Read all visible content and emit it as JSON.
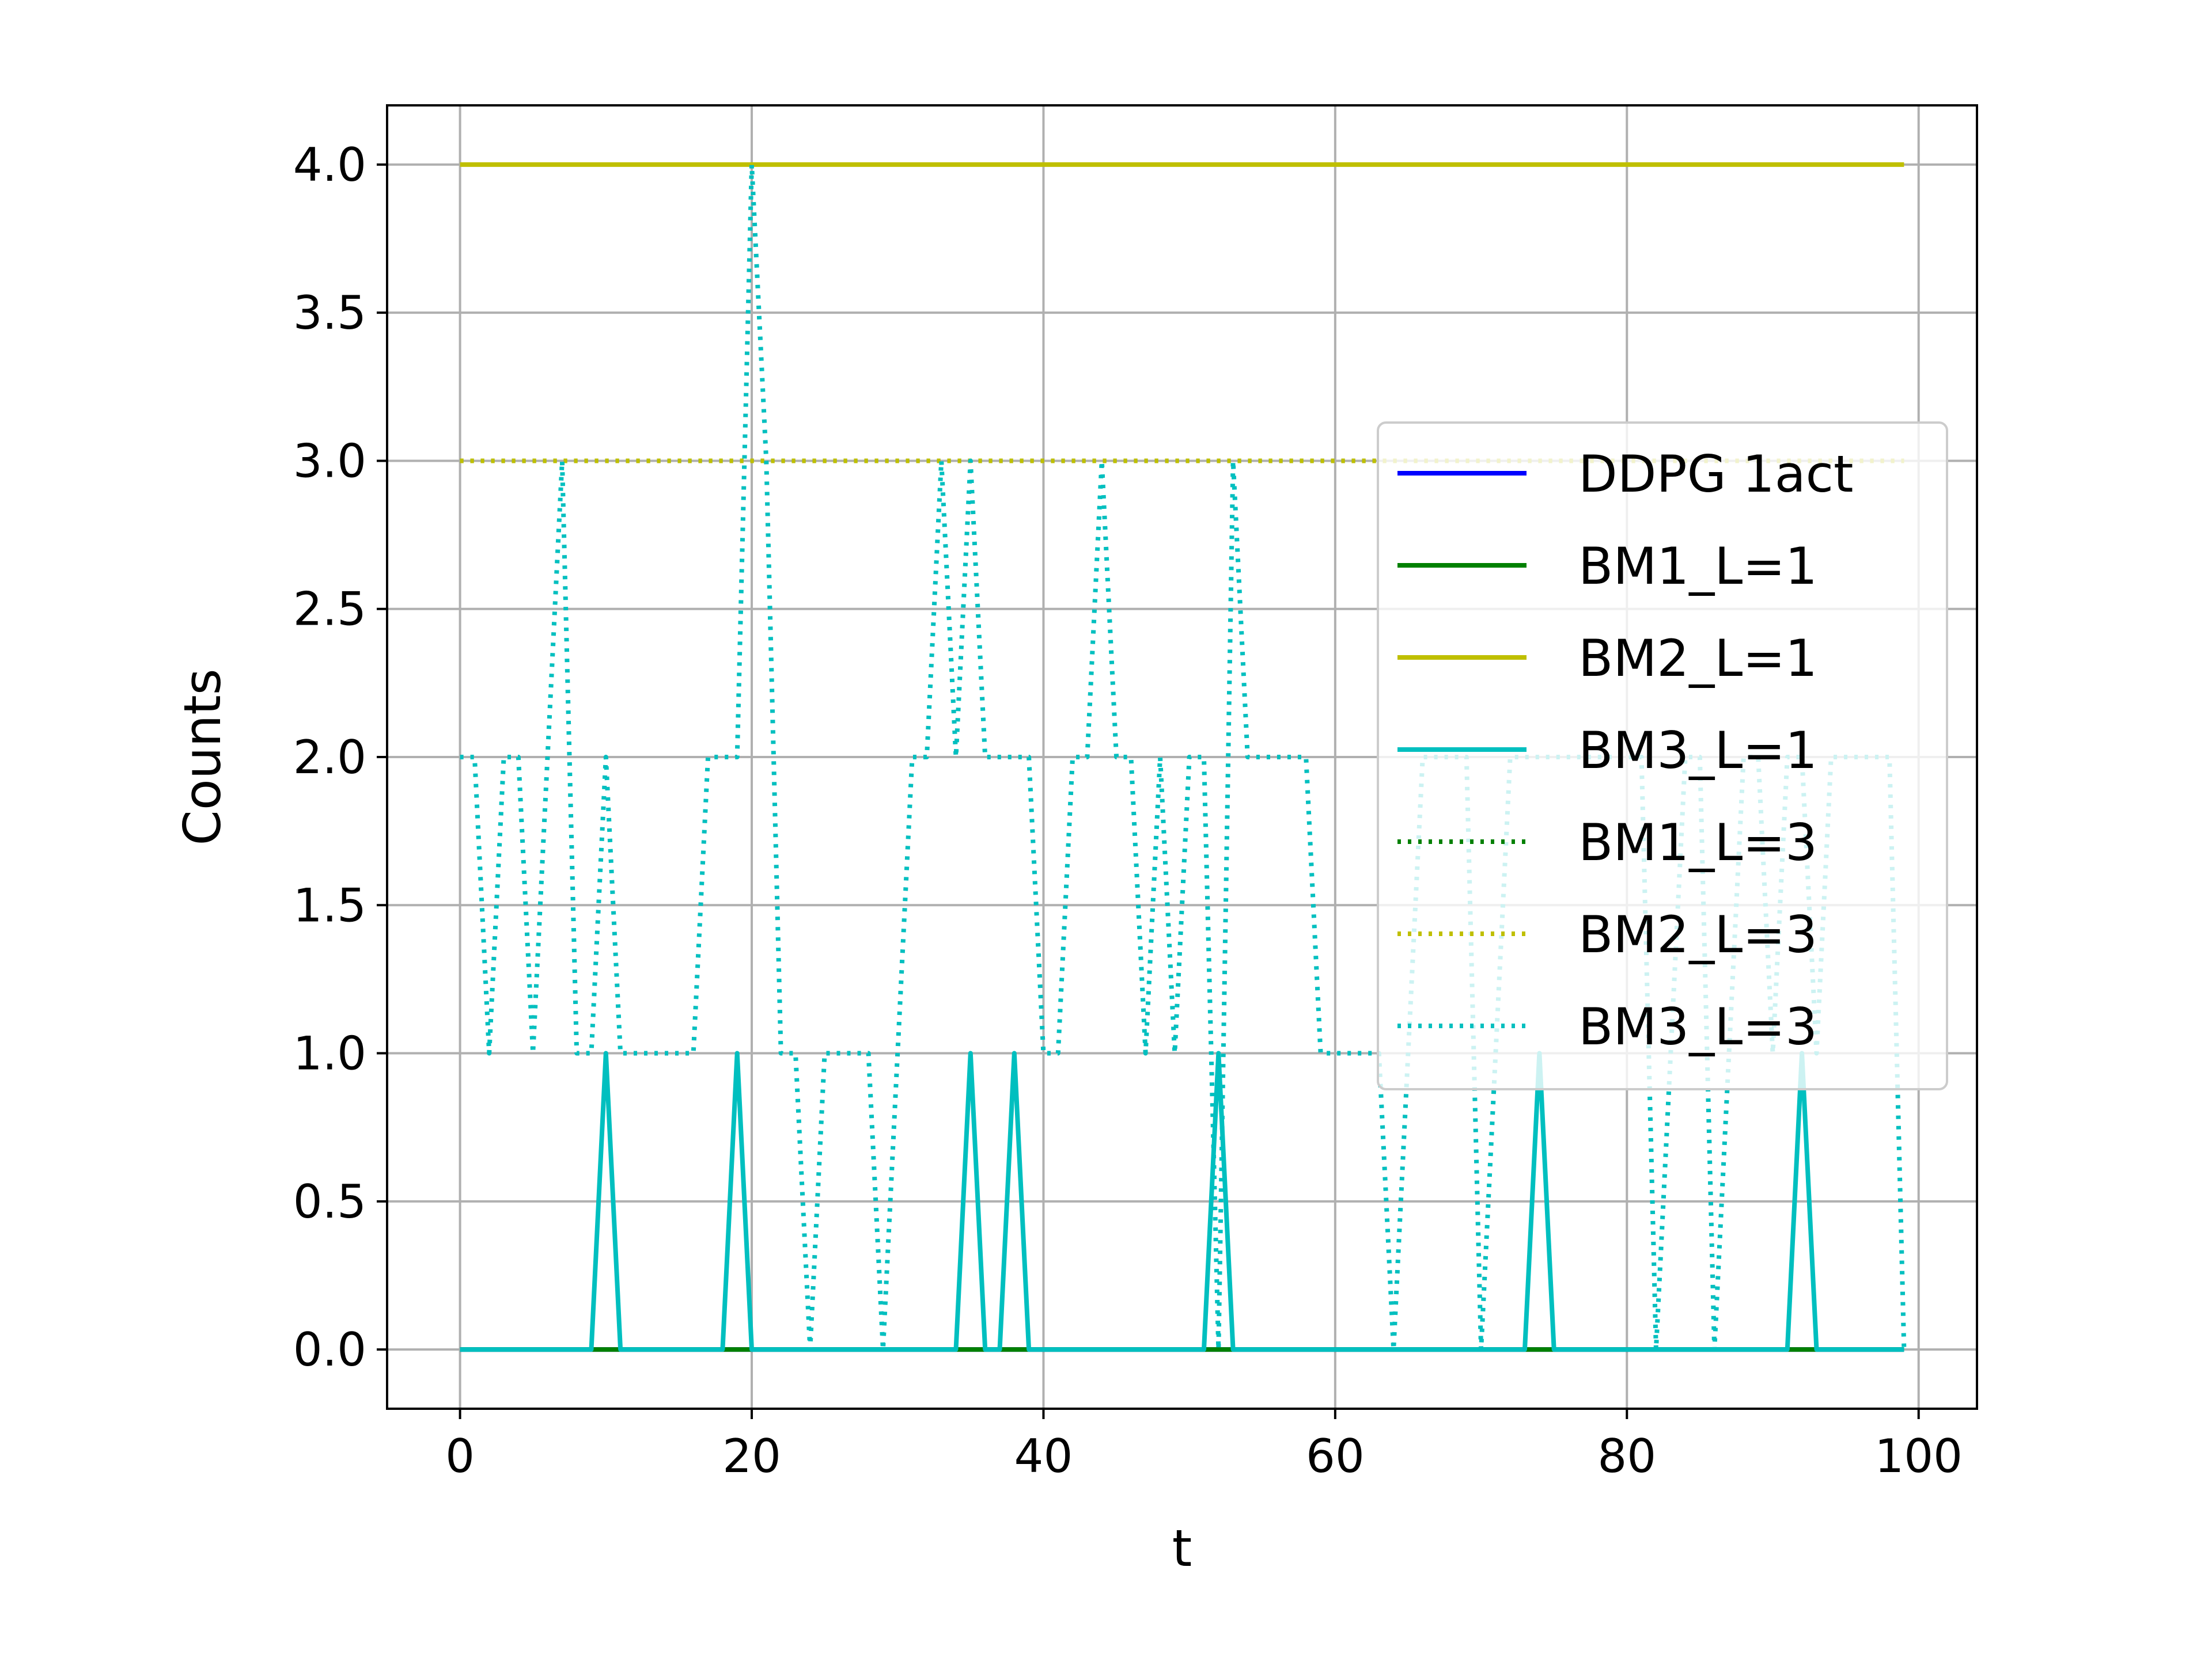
{
  "chart_data": {
    "type": "line",
    "title": "",
    "xlabel": "t",
    "ylabel": "Counts",
    "xlim": [
      -5,
      104
    ],
    "ylim": [
      -0.2,
      4.2
    ],
    "xticks": [
      0,
      20,
      40,
      60,
      80,
      100
    ],
    "xtick_labels": [
      "0",
      "20",
      "40",
      "60",
      "80",
      "100"
    ],
    "yticks": [
      0.0,
      0.5,
      1.0,
      1.5,
      2.0,
      2.5,
      3.0,
      3.5,
      4.0
    ],
    "ytick_labels": [
      "0.0",
      "0.5",
      "1.0",
      "1.5",
      "2.0",
      "2.5",
      "3.0",
      "3.5",
      "4.0"
    ],
    "grid": true,
    "legend_position": "center-right",
    "series": [
      {
        "name": "DDPG 1act",
        "color": "#0000ff",
        "style": "solid",
        "x": [
          0,
          99
        ],
        "y": [
          0,
          0
        ]
      },
      {
        "name": "BM1_L=1",
        "color": "#008000",
        "style": "solid",
        "x": [
          0,
          99
        ],
        "y": [
          0,
          0
        ]
      },
      {
        "name": "BM2_L=1",
        "color": "#bfbf00",
        "style": "solid",
        "x": [
          0,
          99
        ],
        "y": [
          4,
          4
        ]
      },
      {
        "name": "BM3_L=1",
        "color": "#00bfbf",
        "style": "solid",
        "x": [
          0,
          9,
          10,
          11,
          18,
          19,
          20,
          34,
          35,
          36,
          37,
          38,
          39,
          51,
          52,
          53,
          73,
          74,
          75,
          91,
          92,
          93,
          99
        ],
        "y": [
          0,
          0,
          1,
          0,
          0,
          1,
          0,
          0,
          1,
          0,
          0,
          1,
          0,
          0,
          1,
          0,
          0,
          1,
          0,
          0,
          1,
          0,
          0
        ]
      },
      {
        "name": "BM1_L=3",
        "color": "#008000",
        "style": "dotted",
        "x": [
          0,
          99
        ],
        "y": [
          3,
          3
        ]
      },
      {
        "name": "BM2_L=3",
        "color": "#bfbf00",
        "style": "dotted",
        "x": [
          0,
          99
        ],
        "y": [
          3,
          3
        ]
      },
      {
        "name": "BM3_L=3",
        "color": "#00bfbf",
        "style": "dotted",
        "x": [
          0,
          1,
          2,
          3,
          4,
          5,
          6,
          7,
          8,
          9,
          10,
          11,
          12,
          13,
          14,
          15,
          16,
          17,
          18,
          19,
          20,
          21,
          22,
          23,
          24,
          25,
          26,
          27,
          28,
          29,
          30,
          31,
          32,
          33,
          34,
          35,
          36,
          37,
          38,
          39,
          40,
          41,
          42,
          43,
          44,
          45,
          46,
          47,
          48,
          49,
          50,
          51,
          52,
          53,
          54,
          55,
          56,
          57,
          58,
          59,
          60,
          61,
          62,
          63,
          64,
          65,
          66,
          67,
          68,
          69,
          70,
          71,
          72,
          73,
          74,
          75,
          76,
          77,
          78,
          79,
          80,
          81,
          82,
          83,
          84,
          85,
          86,
          87,
          88,
          89,
          90,
          91,
          92,
          93,
          94,
          95,
          96,
          97,
          98,
          99
        ],
        "y": [
          2,
          2,
          1,
          2,
          2,
          1,
          2,
          3,
          1,
          1,
          2,
          1,
          1,
          1,
          1,
          1,
          1,
          2,
          2,
          2,
          4,
          3,
          1,
          1,
          0,
          1,
          1,
          1,
          1,
          0,
          1,
          2,
          2,
          3,
          2,
          3,
          2,
          2,
          2,
          2,
          1,
          1,
          2,
          2,
          3,
          2,
          2,
          1,
          2,
          1,
          2,
          2,
          0,
          3,
          2,
          2,
          2,
          2,
          2,
          1,
          1,
          1,
          1,
          1,
          0,
          1,
          2,
          2,
          2,
          2,
          0,
          1,
          2,
          2,
          2,
          2,
          2,
          2,
          2,
          2,
          2,
          2,
          0,
          1,
          2,
          2,
          0,
          1,
          2,
          2,
          1,
          2,
          2,
          1,
          2,
          2,
          2,
          2,
          2,
          0
        ]
      }
    ]
  }
}
